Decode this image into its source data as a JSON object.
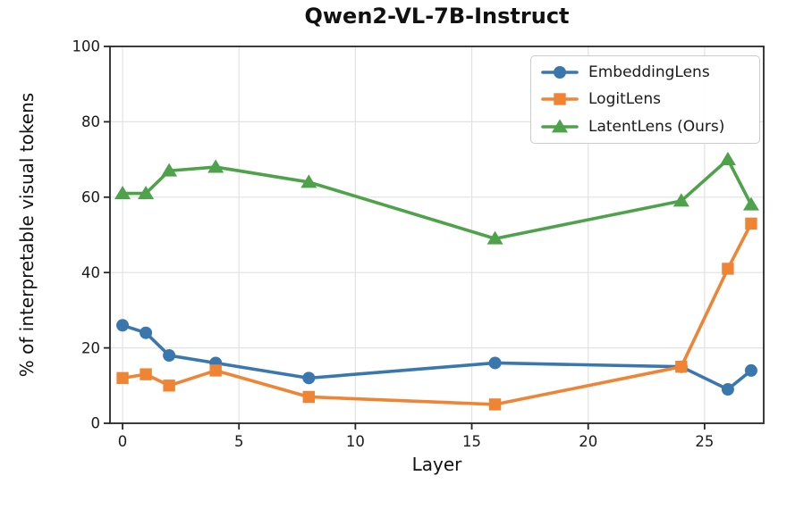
{
  "title": "Qwen2-VL-7B-Instruct",
  "chart_data": {
    "type": "line",
    "title": "Qwen2-VL-7B-Instruct",
    "xlabel": "Layer",
    "ylabel": "% of interpretable visual tokens",
    "x": [
      0,
      1,
      2,
      4,
      8,
      16,
      24,
      26,
      27
    ],
    "series": [
      {
        "name": "EmbeddingLens",
        "marker": "circle",
        "color": "#3a77af",
        "values": [
          26,
          24,
          18,
          16,
          12,
          16,
          15,
          9,
          14
        ]
      },
      {
        "name": "LogitLens",
        "marker": "square",
        "color": "#ee8434",
        "values": [
          12,
          13,
          10,
          14,
          7,
          5,
          15,
          41,
          53
        ]
      },
      {
        "name": "LatentLens (Ours)",
        "marker": "triangle",
        "color": "#4ea24a",
        "values": [
          61,
          61,
          67,
          68,
          64,
          49,
          59,
          70,
          58
        ]
      }
    ],
    "xlim": [
      -0.54,
      27.54
    ],
    "ylim": [
      0,
      100
    ],
    "xticks": [
      0,
      5,
      10,
      15,
      20,
      25
    ],
    "yticks": [
      0,
      20,
      40,
      60,
      80,
      100
    ],
    "grid": true,
    "grid_color": "#e2e2e2",
    "axis_color": "#262626",
    "text_color": "#1a1a1a",
    "legend_position": "upper right"
  }
}
